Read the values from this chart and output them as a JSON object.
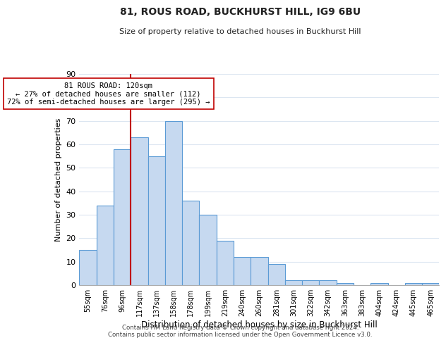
{
  "title": "81, ROUS ROAD, BUCKHURST HILL, IG9 6BU",
  "subtitle": "Size of property relative to detached houses in Buckhurst Hill",
  "xlabel": "Distribution of detached houses by size in Buckhurst Hill",
  "ylabel": "Number of detached properties",
  "bar_labels": [
    "55sqm",
    "76sqm",
    "96sqm",
    "117sqm",
    "137sqm",
    "158sqm",
    "178sqm",
    "199sqm",
    "219sqm",
    "240sqm",
    "260sqm",
    "281sqm",
    "301sqm",
    "322sqm",
    "342sqm",
    "363sqm",
    "383sqm",
    "404sqm",
    "424sqm",
    "445sqm",
    "465sqm"
  ],
  "bar_values": [
    15,
    34,
    58,
    63,
    55,
    70,
    36,
    30,
    19,
    12,
    12,
    9,
    2,
    2,
    2,
    1,
    0,
    1,
    0,
    1,
    1
  ],
  "bar_color": "#c6d9f0",
  "bar_edge_color": "#5b9bd5",
  "property_line_color": "#c00000",
  "ylim": [
    0,
    90
  ],
  "yticks": [
    0,
    10,
    20,
    30,
    40,
    50,
    60,
    70,
    80,
    90
  ],
  "annotation_text": "81 ROUS ROAD: 120sqm\n← 27% of detached houses are smaller (112)\n72% of semi-detached houses are larger (295) →",
  "annotation_box_color": "#ffffff",
  "annotation_box_edge": "#c00000",
  "footer1": "Contains HM Land Registry data © Crown copyright and database right 2024.",
  "footer2": "Contains public sector information licensed under the Open Government Licence v3.0.",
  "background_color": "#ffffff",
  "grid_color": "#dce6f1"
}
